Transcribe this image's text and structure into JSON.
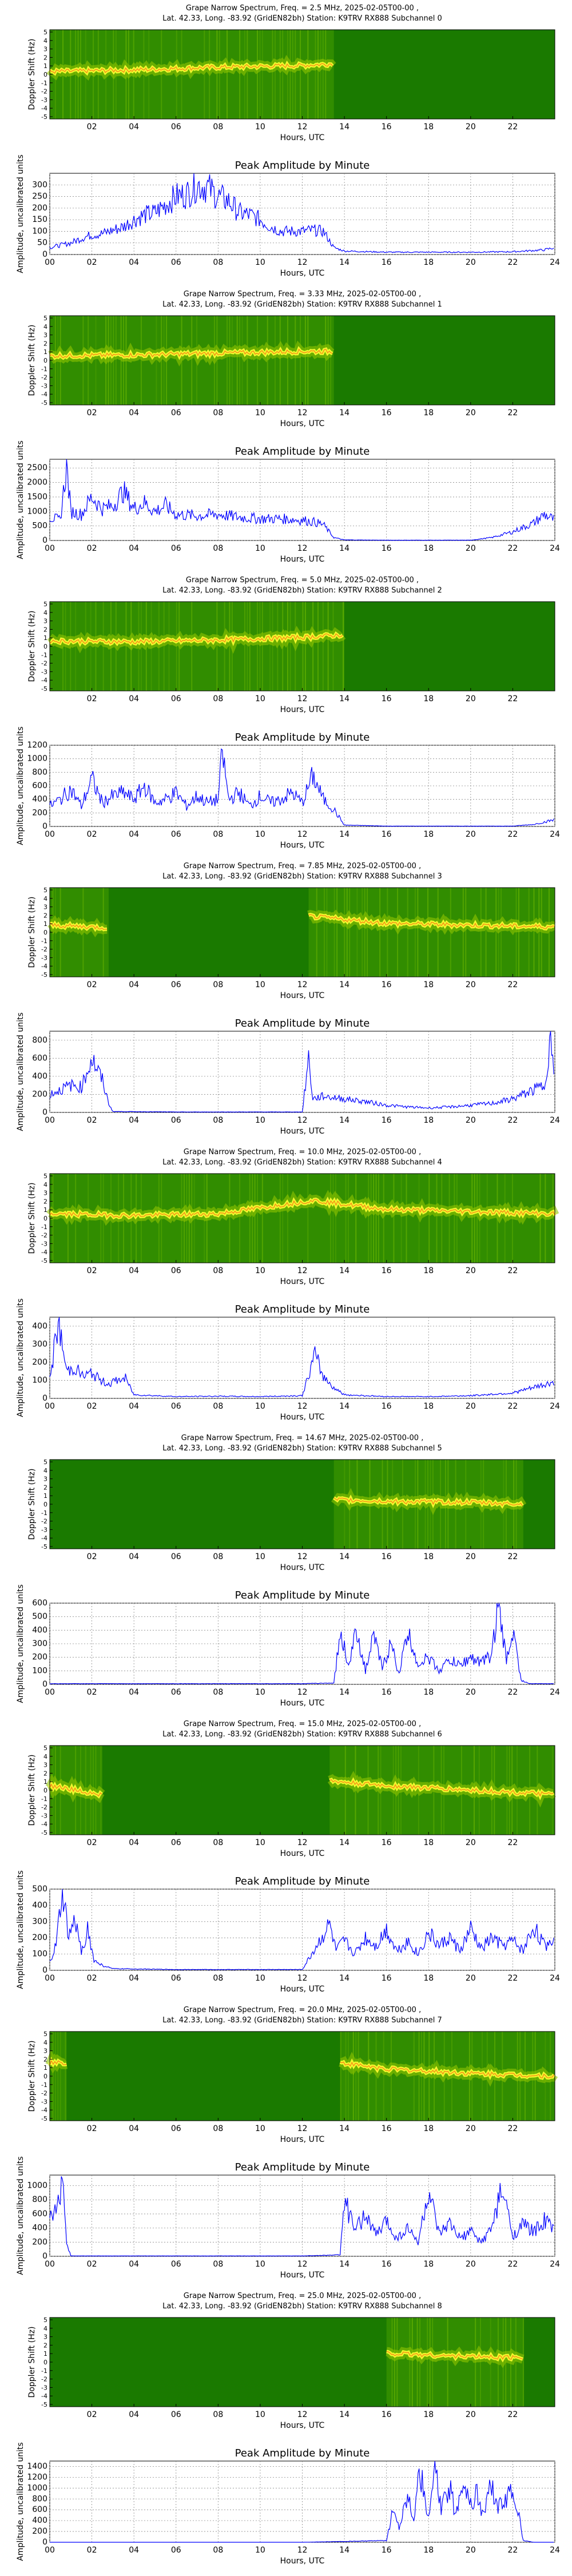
{
  "common": {
    "spec_ylabel": "Doppler Shift (Hz)",
    "amp_title": "Peak Amplitude by Minute",
    "amp_ylabel": "Amplitude, uncalibrated units",
    "xlabel": "Hours, UTC",
    "spec_yticks": [
      "5",
      "4",
      "3",
      "2",
      "1",
      "0",
      "-1",
      "-2",
      "-3",
      "-4",
      "-5"
    ],
    "spec_xticks": [
      "02",
      "04",
      "06",
      "08",
      "10",
      "12",
      "14",
      "16",
      "18",
      "20",
      "22"
    ],
    "amp_xticks": [
      "00",
      "02",
      "04",
      "06",
      "08",
      "10",
      "12",
      "14",
      "16",
      "18",
      "20",
      "22",
      "24"
    ],
    "colors": {
      "line": "#0000ff",
      "spec_bg": "#1a7a00",
      "spec_mid": "#8fc400",
      "spec_hot": "#ffff33",
      "spec_peak": "#ff3300"
    }
  },
  "chart_data": [
    {
      "type": "heatmap",
      "id": "spec0",
      "title": "Grape Narrow Spectrum, Freq. = 2.5 MHz, 2025-02-05T00-00 ,",
      "subtitle": "Lat.  42.33, Long. -83.92 (GridEN82bh) Station: K9TRV RX888 Subchannel 0",
      "x_range_hours": [
        0,
        24
      ],
      "y_range_hz": [
        -5,
        5
      ],
      "active_hours": [
        [
          0,
          13.5
        ]
      ],
      "doppler_hz": [
        [
          0,
          0.3
        ],
        [
          4,
          0.5
        ],
        [
          8,
          0.8
        ],
        [
          12,
          1.0
        ],
        [
          13.5,
          1.2
        ]
      ]
    },
    {
      "type": "line",
      "id": "amp0",
      "title": "Peak Amplitude by Minute",
      "xlabel": "Hours, UTC",
      "ylabel": "Amplitude, uncalibrated units",
      "xlim": [
        0,
        24
      ],
      "ylim": [
        0,
        350
      ],
      "yticks": [
        0,
        50,
        100,
        150,
        200,
        250,
        300
      ],
      "x": [
        0,
        0.5,
        1,
        1.5,
        2,
        2.5,
        3,
        3.5,
        4,
        4.5,
        5,
        5.5,
        6,
        6.5,
        7,
        7.5,
        8,
        8.5,
        9,
        9.5,
        10,
        10.5,
        11,
        11.5,
        12,
        12.5,
        13,
        13.5,
        14,
        16,
        18,
        20,
        22,
        23.5,
        24
      ],
      "y": [
        30,
        40,
        50,
        70,
        85,
        90,
        105,
        120,
        150,
        170,
        180,
        215,
        250,
        260,
        300,
        290,
        250,
        230,
        180,
        170,
        150,
        120,
        100,
        100,
        100,
        105,
        100,
        30,
        15,
        10,
        10,
        10,
        12,
        20,
        30
      ]
    },
    {
      "type": "heatmap",
      "id": "spec1",
      "title": "Grape Narrow Spectrum, Freq. = 3.33 MHz, 2025-02-05T00-00 ,",
      "subtitle": "Lat.  42.33, Long. -83.92 (GridEN82bh) Station: K9TRV RX888 Subchannel 1",
      "x_range_hours": [
        0,
        24
      ],
      "y_range_hz": [
        -5,
        5
      ],
      "active_hours": [
        [
          0,
          13.5
        ]
      ],
      "doppler_hz": [
        [
          0,
          0.5
        ],
        [
          4,
          0.6
        ],
        [
          8,
          0.8
        ],
        [
          12,
          1.0
        ],
        [
          13.5,
          1.0
        ]
      ]
    },
    {
      "type": "line",
      "id": "amp1",
      "title": "Peak Amplitude by Minute",
      "xlabel": "Hours, UTC",
      "ylabel": "Amplitude, uncalibrated units",
      "xlim": [
        0,
        24
      ],
      "ylim": [
        0,
        2800
      ],
      "yticks": [
        0,
        500,
        1000,
        1500,
        2000,
        2500
      ],
      "x": [
        0,
        0.5,
        0.8,
        1,
        1.5,
        2,
        2.5,
        3,
        3.5,
        4,
        4.5,
        5,
        5.5,
        6,
        7,
        8,
        9,
        10,
        11,
        12,
        12.5,
        13,
        13.5,
        14,
        16,
        18,
        20,
        21,
        22,
        23,
        23.5,
        24
      ],
      "y": [
        800,
        700,
        2600,
        1000,
        900,
        1500,
        1100,
        1200,
        1700,
        1100,
        1300,
        1000,
        1200,
        900,
        850,
        900,
        800,
        750,
        750,
        700,
        650,
        550,
        100,
        20,
        10,
        10,
        10,
        100,
        300,
        600,
        900,
        700
      ]
    },
    {
      "type": "heatmap",
      "id": "spec2",
      "title": "Grape Narrow Spectrum, Freq. = 5.0 MHz, 2025-02-05T00-00 ,",
      "subtitle": "Lat.  42.33, Long. -83.92 (GridEN82bh) Station: K9TRV RX888 Subchannel 2",
      "x_range_hours": [
        0,
        24
      ],
      "y_range_hz": [
        -5,
        5
      ],
      "active_hours": [
        [
          0,
          14
        ]
      ],
      "doppler_hz": [
        [
          0,
          0.6
        ],
        [
          4,
          0.5
        ],
        [
          8,
          0.7
        ],
        [
          12,
          1.0
        ],
        [
          14,
          1.3
        ]
      ]
    },
    {
      "type": "line",
      "id": "amp2",
      "title": "Peak Amplitude by Minute",
      "xlabel": "Hours, UTC",
      "ylabel": "Amplitude, uncalibrated units",
      "xlim": [
        0,
        24
      ],
      "ylim": [
        0,
        1200
      ],
      "yticks": [
        0,
        200,
        400,
        600,
        800,
        1000,
        1200
      ],
      "x": [
        0,
        0.5,
        1,
        1.5,
        2,
        2.5,
        3,
        3.5,
        4,
        4.5,
        5,
        5.5,
        6,
        6.5,
        7,
        7.5,
        8,
        8.2,
        8.5,
        9,
        9.5,
        10,
        10.5,
        11,
        11.5,
        12,
        12.5,
        13,
        13.5,
        14,
        16,
        18,
        20,
        22,
        23,
        24
      ],
      "y": [
        300,
        400,
        550,
        300,
        700,
        350,
        450,
        500,
        400,
        600,
        350,
        400,
        500,
        300,
        450,
        350,
        400,
        1100,
        400,
        500,
        300,
        450,
        350,
        400,
        500,
        350,
        750,
        400,
        250,
        20,
        5,
        5,
        5,
        5,
        30,
        100
      ]
    },
    {
      "type": "heatmap",
      "id": "spec3",
      "title": "Grape Narrow Spectrum, Freq. = 7.85 MHz, 2025-02-05T00-00 ,",
      "subtitle": "Lat.  42.33, Long. -83.92 (GridEN82bh) Station: K9TRV RX888 Subchannel 3",
      "x_range_hours": [
        0,
        24
      ],
      "y_range_hz": [
        -5,
        5
      ],
      "active_hours": [
        [
          0,
          2.8
        ],
        [
          12.3,
          24
        ]
      ],
      "doppler_hz": [
        [
          0,
          0.8
        ],
        [
          2.8,
          0.5
        ],
        [
          12.3,
          1.8
        ],
        [
          16,
          1.0
        ],
        [
          20,
          0.8
        ],
        [
          24,
          0.6
        ]
      ]
    },
    {
      "type": "line",
      "id": "amp3",
      "title": "Peak Amplitude by Minute",
      "xlabel": "Hours, UTC",
      "ylabel": "Amplitude, uncalibrated units",
      "xlim": [
        0,
        24
      ],
      "ylim": [
        0,
        900
      ],
      "yticks": [
        0,
        200,
        400,
        600,
        800
      ],
      "x": [
        0,
        0.5,
        1,
        1.5,
        2,
        2.5,
        2.8,
        3,
        6,
        9,
        12,
        12.3,
        12.5,
        13,
        14,
        15,
        16,
        17,
        18,
        19,
        20,
        21,
        22,
        22.5,
        23,
        23.5,
        23.8,
        24
      ],
      "y": [
        200,
        250,
        300,
        280,
        600,
        350,
        100,
        10,
        5,
        5,
        5,
        600,
        150,
        180,
        150,
        120,
        80,
        60,
        50,
        60,
        80,
        100,
        150,
        200,
        250,
        300,
        850,
        200
      ]
    },
    {
      "type": "heatmap",
      "id": "spec4",
      "title": "Grape Narrow Spectrum, Freq. = 10.0 MHz, 2025-02-05T00-00 ,",
      "subtitle": "Lat.  42.33, Long. -83.92 (GridEN82bh) Station: K9TRV RX888 Subchannel 4",
      "x_range_hours": [
        0,
        24
      ],
      "y_range_hz": [
        -5,
        5
      ],
      "active_hours": [
        [
          0,
          24
        ]
      ],
      "doppler_hz": [
        [
          0,
          0.5
        ],
        [
          4,
          0.3
        ],
        [
          8,
          0.5
        ],
        [
          12.5,
          2.0
        ],
        [
          16,
          1.0
        ],
        [
          24,
          0.5
        ]
      ]
    },
    {
      "type": "line",
      "id": "amp4",
      "title": "Peak Amplitude by Minute",
      "xlabel": "Hours, UTC",
      "ylabel": "Amplitude, uncalibrated units",
      "xlim": [
        0,
        24
      ],
      "ylim": [
        0,
        450
      ],
      "yticks": [
        0,
        100,
        200,
        300,
        400
      ],
      "x": [
        0,
        0.4,
        0.8,
        1.2,
        1.6,
        2,
        2.4,
        2.8,
        3.2,
        3.6,
        4,
        6,
        8,
        10,
        12,
        12.6,
        13,
        13.5,
        14,
        16,
        18,
        20,
        22,
        23,
        24
      ],
      "y": [
        100,
        420,
        150,
        170,
        120,
        140,
        100,
        80,
        100,
        110,
        20,
        10,
        12,
        10,
        15,
        240,
        120,
        60,
        20,
        10,
        10,
        15,
        30,
        60,
        90
      ]
    },
    {
      "type": "heatmap",
      "id": "spec5",
      "title": "Grape Narrow Spectrum, Freq. = 14.67 MHz, 2025-02-05T00-00 ,",
      "subtitle": "Lat.  42.33, Long. -83.92 (GridEN82bh) Station: K9TRV RX888 Subchannel 5",
      "x_range_hours": [
        0,
        24
      ],
      "y_range_hz": [
        -5,
        5
      ],
      "active_hours": [
        [
          13.5,
          22.5
        ]
      ],
      "doppler_hz": [
        [
          13.5,
          0.5
        ],
        [
          16,
          0.3
        ],
        [
          20,
          0.2
        ],
        [
          22.5,
          0.0
        ]
      ]
    },
    {
      "type": "line",
      "id": "amp5",
      "title": "Peak Amplitude by Minute",
      "xlabel": "Hours, UTC",
      "ylabel": "Amplitude, uncalibrated units",
      "xlim": [
        0,
        24
      ],
      "ylim": [
        0,
        600
      ],
      "yticks": [
        0,
        100,
        200,
        300,
        400,
        500,
        600
      ],
      "x": [
        0,
        4,
        8,
        12,
        13.5,
        13.8,
        14.2,
        14.6,
        15,
        15.4,
        15.8,
        16.2,
        16.6,
        17,
        17.5,
        18,
        18.5,
        19,
        19.5,
        20,
        20.5,
        21,
        21.3,
        21.7,
        22,
        22.4,
        22.8,
        24
      ],
      "y": [
        5,
        5,
        5,
        5,
        10,
        380,
        150,
        400,
        100,
        350,
        120,
        300,
        80,
        380,
        150,
        200,
        100,
        180,
        140,
        200,
        160,
        220,
        580,
        180,
        400,
        30,
        5,
        5
      ]
    },
    {
      "type": "heatmap",
      "id": "spec6",
      "title": "Grape Narrow Spectrum, Freq. = 15.0 MHz, 2025-02-05T00-00 ,",
      "subtitle": "Lat.  42.33, Long. -83.92 (GridEN82bh) Station: K9TRV RX888 Subchannel 6",
      "x_range_hours": [
        0,
        24
      ],
      "y_range_hz": [
        -5,
        5
      ],
      "active_hours": [
        [
          0,
          2.5
        ],
        [
          13.3,
          24
        ]
      ],
      "doppler_hz": [
        [
          0,
          0.5
        ],
        [
          2.5,
          -0.5
        ],
        [
          13.3,
          1.0
        ],
        [
          16,
          0.5
        ],
        [
          20,
          0.0
        ],
        [
          24,
          -0.5
        ]
      ]
    },
    {
      "type": "line",
      "id": "amp6",
      "title": "Peak Amplitude by Minute",
      "xlabel": "Hours, UTC",
      "ylabel": "Amplitude, uncalibrated units",
      "xlim": [
        0,
        24
      ],
      "ylim": [
        0,
        500
      ],
      "yticks": [
        0,
        100,
        200,
        300,
        400,
        500
      ],
      "x": [
        0,
        0.3,
        0.6,
        0.9,
        1.2,
        1.5,
        1.8,
        2.1,
        2.5,
        3,
        6,
        9,
        12,
        13.3,
        13.6,
        14,
        14.5,
        15,
        15.5,
        16,
        16.5,
        17,
        17.5,
        18,
        18.5,
        19,
        19.5,
        20,
        20.5,
        21,
        21.5,
        22,
        22.5,
        23,
        23.5,
        24
      ],
      "y": [
        50,
        150,
        480,
        200,
        300,
        120,
        250,
        60,
        30,
        10,
        5,
        5,
        5,
        280,
        120,
        180,
        100,
        200,
        150,
        250,
        120,
        180,
        100,
        230,
        150,
        200,
        120,
        250,
        130,
        200,
        150,
        180,
        120,
        270,
        150,
        200
      ]
    },
    {
      "type": "heatmap",
      "id": "spec7",
      "title": "Grape Narrow Spectrum, Freq. = 20.0 MHz, 2025-02-05T00-00 ,",
      "subtitle": "Lat.  42.33, Long. -83.92 (GridEN82bh) Station: K9TRV RX888 Subchannel 7",
      "x_range_hours": [
        0,
        24
      ],
      "y_range_hz": [
        -5,
        5
      ],
      "active_hours": [
        [
          0,
          0.8
        ],
        [
          13.8,
          24
        ]
      ],
      "doppler_hz": [
        [
          13.8,
          1.5
        ],
        [
          16,
          0.8
        ],
        [
          20,
          0.3
        ],
        [
          24,
          0.0
        ]
      ]
    },
    {
      "type": "line",
      "id": "amp7",
      "title": "Peak Amplitude by Minute",
      "xlabel": "Hours, UTC",
      "ylabel": "Amplitude, uncalibrated units",
      "xlim": [
        0,
        24
      ],
      "ylim": [
        0,
        1150
      ],
      "yticks": [
        0,
        200,
        400,
        600,
        800,
        1000
      ],
      "x": [
        0,
        0.3,
        0.6,
        0.8,
        1,
        4,
        8,
        12,
        13.8,
        14,
        14.5,
        15,
        15.5,
        16,
        16.5,
        17,
        17.5,
        18,
        18.5,
        19,
        19.5,
        20,
        20.5,
        21,
        21.5,
        22,
        22.5,
        23,
        23.5,
        24
      ],
      "y": [
        500,
        700,
        1050,
        200,
        5,
        5,
        5,
        5,
        20,
        800,
        350,
        600,
        300,
        500,
        250,
        400,
        200,
        900,
        300,
        450,
        250,
        350,
        200,
        400,
        950,
        300,
        450,
        350,
        500,
        400
      ]
    },
    {
      "type": "heatmap",
      "id": "spec8",
      "title": "Grape Narrow Spectrum, Freq. = 25.0 MHz, 2025-02-05T00-00 ,",
      "subtitle": "Lat.  42.33, Long. -83.92 (GridEN82bh) Station: K9TRV RX888 Subchannel 8",
      "x_range_hours": [
        0,
        24
      ],
      "y_range_hz": [
        -5,
        5
      ],
      "active_hours": [
        [
          16,
          22.5
        ]
      ],
      "doppler_hz": [
        [
          16,
          1.0
        ],
        [
          19,
          0.7
        ],
        [
          22.5,
          0.5
        ]
      ]
    },
    {
      "type": "line",
      "id": "amp8",
      "title": "Peak Amplitude by Minute",
      "xlabel": "Hours, UTC",
      "ylabel": "Amplitude, uncalibrated units",
      "xlim": [
        0,
        24
      ],
      "ylim": [
        0,
        1500
      ],
      "yticks": [
        0,
        200,
        400,
        600,
        800,
        1000,
        1200,
        1400
      ],
      "x": [
        0,
        4,
        8,
        12,
        16,
        16.3,
        16.6,
        17,
        17.3,
        17.6,
        18,
        18.3,
        18.6,
        19,
        19.3,
        19.6,
        20,
        20.3,
        20.6,
        21,
        21.3,
        21.6,
        22,
        22.2,
        22.5,
        23,
        24
      ],
      "y": [
        0,
        0,
        0,
        0,
        30,
        600,
        300,
        900,
        500,
        1300,
        400,
        1400,
        600,
        1000,
        500,
        1200,
        700,
        900,
        500,
        1100,
        600,
        800,
        900,
        700,
        30,
        0,
        0
      ]
    }
  ]
}
